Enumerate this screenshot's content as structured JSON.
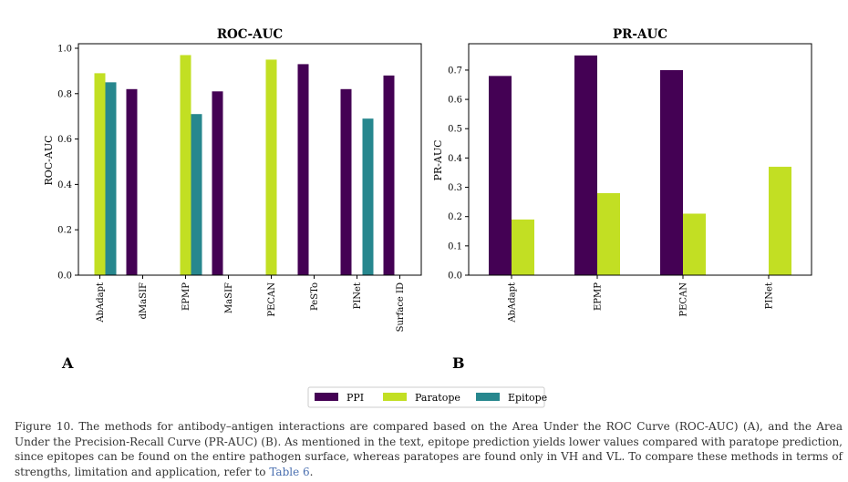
{
  "colors": {
    "PPI": "#440154",
    "Paratope": "#c2df23",
    "Epitope": "#27878e"
  },
  "chart_data": [
    {
      "type": "bar",
      "title": "ROC-AUC",
      "panel_label": "A",
      "ylabel": "ROC-AUC",
      "xlabel": "",
      "ylim": [
        0,
        1.02
      ],
      "yticks": [
        "0.0",
        "0.2",
        "0.4",
        "0.6",
        "0.8",
        "1.0"
      ],
      "categories": [
        "AbAdapt",
        "dMaSIF",
        "EPMP",
        "MaSIF",
        "PECAN",
        "PeSTo",
        "PINet",
        "Surface ID"
      ],
      "series": [
        {
          "name": "PPI",
          "values": [
            null,
            0.82,
            null,
            0.81,
            null,
            0.93,
            0.82,
            0.88
          ]
        },
        {
          "name": "Paratope",
          "values": [
            0.89,
            null,
            0.97,
            null,
            0.95,
            null,
            null,
            null
          ]
        },
        {
          "name": "Epitope",
          "values": [
            0.85,
            null,
            0.71,
            null,
            null,
            null,
            0.69,
            null
          ]
        }
      ]
    },
    {
      "type": "bar",
      "title": "PR-AUC",
      "panel_label": "B",
      "ylabel": "PR-AUC",
      "xlabel": "",
      "ylim": [
        0,
        0.79
      ],
      "yticks": [
        "0.0",
        "0.1",
        "0.2",
        "0.3",
        "0.4",
        "0.5",
        "0.6",
        "0.7"
      ],
      "categories": [
        "AbAdapt",
        "EPMP",
        "PECAN",
        "PINet"
      ],
      "series": [
        {
          "name": "PPI",
          "values": [
            0.68,
            0.75,
            0.7,
            null
          ]
        },
        {
          "name": "Paratope",
          "values": [
            0.19,
            0.28,
            0.21,
            0.37
          ]
        }
      ]
    }
  ],
  "legend": [
    {
      "label": "PPI",
      "color": "#440154"
    },
    {
      "label": "Paratope",
      "color": "#c2df23"
    },
    {
      "label": "Epitope",
      "color": "#27878e"
    }
  ],
  "caption": {
    "text": "Figure 10. The methods for antibody–antigen interactions are compared based on the Area Under the ROC Curve (ROC-AUC) (A), and the Area Under the Precision-Recall Curve (PR-AUC) (B). As mentioned in the text, epitope prediction yields lower values compared with paratope prediction, since epitopes can be found on the entire pathogen surface, whereas paratopes are found only in VH and VL. To compare these methods in terms of strengths, limitation and application, refer to ",
    "link": "Table 6",
    "end": "."
  }
}
